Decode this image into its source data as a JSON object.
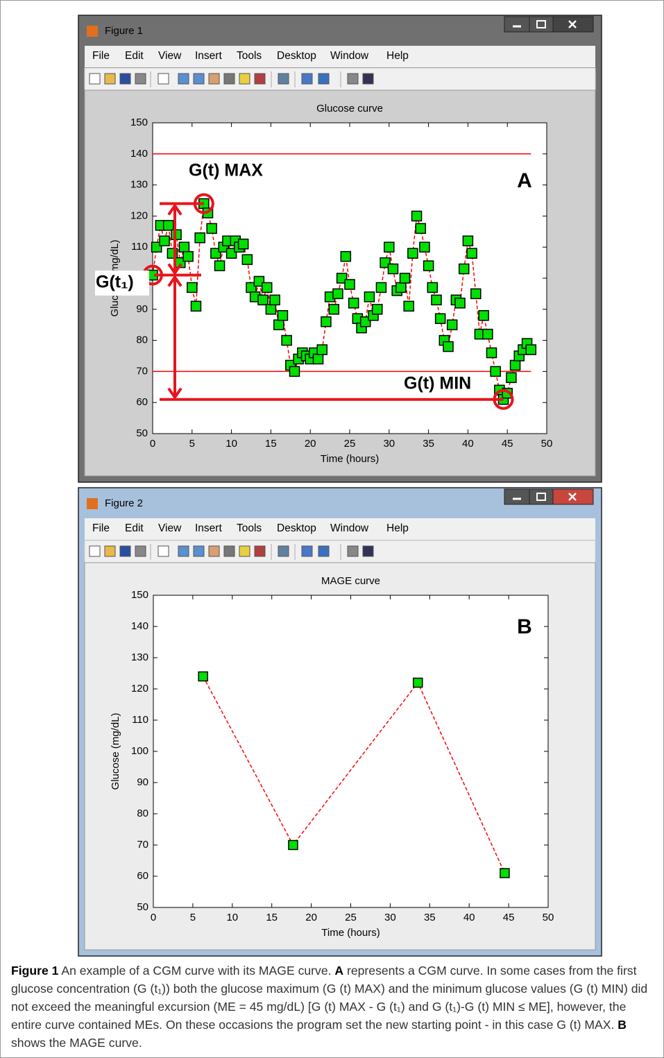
{
  "windows": [
    {
      "title": "Figure 1",
      "menu": [
        "File",
        "Edit",
        "View",
        "Insert",
        "Tools",
        "Desktop",
        "Window",
        "Help"
      ]
    },
    {
      "title": "Figure 2",
      "menu": [
        "File",
        "Edit",
        "View",
        "Insert",
        "Tools",
        "Desktop",
        "Window",
        "Help"
      ]
    }
  ],
  "chart_data": [
    {
      "type": "line",
      "title": "Glucose curve",
      "x_label": "Time (hours)",
      "y_label": "Glucose (mg/dL)",
      "x": [
        0,
        0.5,
        1,
        1.5,
        2,
        2.5,
        3,
        3.5,
        4,
        4.5,
        5,
        5.5,
        6,
        6.5,
        7,
        7.5,
        8,
        8.5,
        9,
        9.5,
        10,
        10.5,
        11,
        11.5,
        12,
        12.5,
        13,
        13.5,
        14,
        14.5,
        15,
        15.5,
        16,
        16.5,
        17,
        17.5,
        18,
        18.5,
        19,
        19.5,
        20,
        20.5,
        21,
        21.5,
        22,
        22.5,
        23,
        23.5,
        24,
        24.5,
        25,
        25.5,
        26,
        26.5,
        27,
        27.5,
        28,
        28.5,
        29,
        29.5,
        30,
        30.5,
        31,
        31.5,
        32,
        32.5,
        33,
        33.5,
        34,
        34.5,
        35,
        35.5,
        36,
        36.5,
        37,
        37.5,
        38,
        38.5,
        39,
        39.5,
        40,
        40.5,
        41,
        41.5,
        42,
        42.5,
        43,
        43.5,
        44,
        44.5,
        45,
        45.5,
        46,
        46.5,
        47,
        47.5,
        48
      ],
      "values": [
        101,
        110,
        117,
        112,
        117,
        108,
        114,
        105,
        110,
        107,
        97,
        91,
        113,
        124,
        121,
        116,
        108,
        104,
        110,
        112,
        108,
        112,
        110,
        111,
        106,
        97,
        94,
        99,
        93,
        97,
        90,
        93,
        85,
        88,
        80,
        72,
        70,
        74,
        76,
        75,
        74,
        76,
        74,
        77,
        86,
        94,
        90,
        95,
        100,
        107,
        98,
        92,
        87,
        84,
        86,
        94,
        88,
        90,
        97,
        105,
        110,
        103,
        96,
        97,
        100,
        91,
        108,
        120,
        116,
        110,
        104,
        97,
        93,
        87,
        80,
        78,
        85,
        93,
        92,
        103,
        112,
        108,
        95,
        82,
        88,
        82,
        76,
        70,
        64,
        61,
        63,
        68,
        72,
        75,
        77,
        79,
        77
      ],
      "color": "#00e000",
      "line_color": "#ff0000",
      "reference_lines": {
        "values": [
          140,
          70
        ],
        "color": "#ff0000"
      },
      "annotations": [
        "G(t) MAX",
        "G(t) MIN",
        "G(t₁)",
        "A"
      ],
      "xlim": [
        0,
        50
      ],
      "xticks": [
        0,
        5,
        10,
        15,
        20,
        25,
        30,
        35,
        40,
        45,
        50
      ],
      "ylim": [
        50,
        150
      ],
      "yticks": [
        50,
        60,
        70,
        80,
        90,
        100,
        110,
        120,
        130,
        140,
        150
      ]
    },
    {
      "type": "line",
      "title": "MAGE curve",
      "x_label": "Time (hours)",
      "y_label": "Glucose (mg/dL)",
      "x": [
        6.3,
        17.7,
        33.5,
        44.5
      ],
      "values": [
        124,
        70,
        122,
        61
      ],
      "color": "#00e000",
      "line_color": "#ff0000",
      "annotations": [
        "B"
      ],
      "xlim": [
        0,
        50
      ],
      "xticks": [
        0,
        5,
        10,
        15,
        20,
        25,
        30,
        35,
        40,
        45,
        50
      ],
      "ylim": [
        50,
        150
      ],
      "yticks": [
        50,
        60,
        70,
        80,
        90,
        100,
        110,
        120,
        130,
        140,
        150
      ]
    }
  ],
  "caption": {
    "label": "Figure 1",
    "segments": [
      "An example of a CGM curve with its MAGE curve. ",
      "A",
      " represents a CGM curve. In some cases from the first glucose concentration (G (t₁)) both the glucose maximum (G (t) MAX) and the minimum glucose values (G (t) MIN) did not exceed the meaningful excursion (ME = 45 mg/dL) [G (t) MAX - G (t₁) and G (t₁)-G (t) MIN ≤ ME], however, the entire curve contained MEs. On these occasions the program set the new starting point - in this case G (t) MAX. ",
      "B",
      " shows the MAGE curve."
    ]
  }
}
